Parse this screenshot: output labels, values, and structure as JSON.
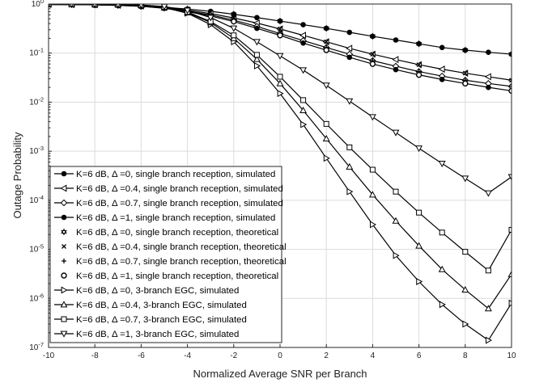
{
  "chart_data": {
    "type": "line",
    "title": "",
    "xlabel": "Normalized Average SNR per Branch",
    "ylabel": "Outage Probability",
    "xlim": [
      -10,
      10
    ],
    "ylim": [
      1e-07,
      1
    ],
    "yscale": "log",
    "grid": true,
    "legend_position": "bottom-left",
    "x_ticks": [
      "-10",
      "-8",
      "-6",
      "-4",
      "-2",
      "0",
      "2",
      "4",
      "6",
      "8",
      "10"
    ],
    "y_ticks": [
      {
        "base": "10",
        "exp": "0"
      },
      {
        "base": "10",
        "exp": "-1"
      },
      {
        "base": "10",
        "exp": "-2"
      },
      {
        "base": "10",
        "exp": "-3"
      },
      {
        "base": "10",
        "exp": "-4"
      },
      {
        "base": "10",
        "exp": "-5"
      },
      {
        "base": "10",
        "exp": "-6"
      },
      {
        "base": "10",
        "exp": "-7"
      }
    ],
    "x_marker_step": 1,
    "x_marker_step_theory": 2,
    "series": [
      {
        "name": "K=6 dB, Δ =0, single branch reception, simulated",
        "marker": "dot",
        "line": true,
        "points": [
          [
            -10,
            0.98
          ],
          [
            -9,
            0.975
          ],
          [
            -8,
            0.965
          ],
          [
            -7,
            0.95
          ],
          [
            -6,
            0.92
          ],
          [
            -5,
            0.86
          ],
          [
            -4,
            0.79
          ],
          [
            -3,
            0.71
          ],
          [
            -2,
            0.62
          ],
          [
            -1,
            0.53
          ],
          [
            0,
            0.45
          ],
          [
            1,
            0.38
          ],
          [
            2,
            0.32
          ],
          [
            3,
            0.265
          ],
          [
            4,
            0.22
          ],
          [
            5,
            0.185
          ],
          [
            6,
            0.155
          ],
          [
            7,
            0.13
          ],
          [
            8,
            0.115
          ],
          [
            9,
            0.104
          ],
          [
            10,
            0.095
          ]
        ]
      },
      {
        "name": "K=6 dB, Δ =0.4, single branch reception, simulated",
        "marker": "triangle-left",
        "line": true,
        "points": [
          [
            -10,
            0.98
          ],
          [
            -9,
            0.975
          ],
          [
            -8,
            0.965
          ],
          [
            -7,
            0.945
          ],
          [
            -6,
            0.91
          ],
          [
            -5,
            0.85
          ],
          [
            -4,
            0.75
          ],
          [
            -3,
            0.64
          ],
          [
            -2,
            0.52
          ],
          [
            -1,
            0.41
          ],
          [
            0,
            0.31
          ],
          [
            1,
            0.23
          ],
          [
            2,
            0.17
          ],
          [
            3,
            0.125
          ],
          [
            4,
            0.095
          ],
          [
            5,
            0.074
          ],
          [
            6,
            0.058
          ],
          [
            7,
            0.047
          ],
          [
            8,
            0.039
          ],
          [
            9,
            0.033
          ],
          [
            10,
            0.028
          ]
        ]
      },
      {
        "name": "K=6 dB, Δ =0.7, single branch reception, simulated",
        "marker": "diamond",
        "line": true,
        "points": [
          [
            -10,
            0.98
          ],
          [
            -9,
            0.975
          ],
          [
            -8,
            0.965
          ],
          [
            -7,
            0.94
          ],
          [
            -6,
            0.9
          ],
          [
            -5,
            0.83
          ],
          [
            -4,
            0.72
          ],
          [
            -3,
            0.6
          ],
          [
            -2,
            0.47
          ],
          [
            -1,
            0.35
          ],
          [
            0,
            0.25
          ],
          [
            1,
            0.18
          ],
          [
            2,
            0.13
          ],
          [
            3,
            0.095
          ],
          [
            4,
            0.07
          ],
          [
            5,
            0.054
          ],
          [
            6,
            0.042
          ],
          [
            7,
            0.034
          ],
          [
            8,
            0.028
          ],
          [
            9,
            0.024
          ],
          [
            10,
            0.021
          ]
        ]
      },
      {
        "name": "K=6 dB, Δ =1, single branch reception, simulated",
        "marker": "dot",
        "line": true,
        "points": [
          [
            -10,
            0.98
          ],
          [
            -9,
            0.975
          ],
          [
            -8,
            0.96
          ],
          [
            -7,
            0.94
          ],
          [
            -6,
            0.9
          ],
          [
            -5,
            0.82
          ],
          [
            -4,
            0.7
          ],
          [
            -3,
            0.57
          ],
          [
            -2,
            0.44
          ],
          [
            -1,
            0.32
          ],
          [
            0,
            0.23
          ],
          [
            1,
            0.16
          ],
          [
            2,
            0.115
          ],
          [
            3,
            0.082
          ],
          [
            4,
            0.06
          ],
          [
            5,
            0.046
          ],
          [
            6,
            0.036
          ],
          [
            7,
            0.029
          ],
          [
            8,
            0.024
          ],
          [
            9,
            0.02
          ],
          [
            10,
            0.017
          ]
        ]
      },
      {
        "name": "K=6 dB, Δ =0, single branch reception, theoretical",
        "marker": "hexagram",
        "line": false,
        "theory_of": 0
      },
      {
        "name": "K=6 dB, Δ =0.4, single branch reception, theoretical",
        "marker": "x",
        "line": false,
        "theory_of": 1
      },
      {
        "name": "K=6 dB, Δ =0.7, single branch reception, theoretical",
        "marker": "plus",
        "line": false,
        "theory_of": 2
      },
      {
        "name": "K=6 dB, Δ =1, single branch reception, theoretical",
        "marker": "circle",
        "line": false,
        "theory_of": 3
      },
      {
        "name": "K=6 dB, Δ =0, 3-branch EGC, simulated",
        "marker": "triangle-right",
        "line": true,
        "points": [
          [
            -10,
            1.0
          ],
          [
            -9,
            1.0
          ],
          [
            -8,
            0.99
          ],
          [
            -7,
            0.98
          ],
          [
            -6,
            0.95
          ],
          [
            -5,
            0.85
          ],
          [
            -4,
            0.65
          ],
          [
            -3,
            0.38
          ],
          [
            -2,
            0.17
          ],
          [
            -1,
            0.055
          ],
          [
            0,
            0.015
          ],
          [
            1,
            0.0035
          ],
          [
            2,
            0.00072
          ],
          [
            3,
            0.00015
          ],
          [
            4,
            3.2e-05
          ],
          [
            5,
            7.5e-06
          ],
          [
            6,
            2.2e-06
          ],
          [
            7,
            7.5e-07
          ],
          [
            8,
            3e-07
          ],
          [
            9,
            1.4e-07
          ],
          [
            10,
            8e-07
          ]
        ]
      },
      {
        "name": "K=6 dB, Δ =0.4, 3-branch EGC, simulated",
        "marker": "triangle-up",
        "line": true,
        "points": [
          [
            -10,
            1.0
          ],
          [
            -9,
            1.0
          ],
          [
            -8,
            0.99
          ],
          [
            -7,
            0.98
          ],
          [
            -6,
            0.95
          ],
          [
            -5,
            0.86
          ],
          [
            -4,
            0.67
          ],
          [
            -3,
            0.42
          ],
          [
            -2,
            0.2
          ],
          [
            -1,
            0.075
          ],
          [
            0,
            0.024
          ],
          [
            1,
            0.0068
          ],
          [
            2,
            0.0018
          ],
          [
            3,
            0.00048
          ],
          [
            4,
            0.00013
          ],
          [
            5,
            3.8e-05
          ],
          [
            6,
            1.18e-05
          ],
          [
            7,
            3.9e-06
          ],
          [
            8,
            1.5e-06
          ],
          [
            9,
            6.2e-07
          ],
          [
            10,
            3.1e-06
          ]
        ]
      },
      {
        "name": "K=6 dB, Δ =0.7, 3-branch EGC, simulated",
        "marker": "square",
        "line": true,
        "points": [
          [
            -10,
            1.0
          ],
          [
            -9,
            1.0
          ],
          [
            -8,
            0.99
          ],
          [
            -7,
            0.98
          ],
          [
            -6,
            0.955
          ],
          [
            -5,
            0.87
          ],
          [
            -4,
            0.69
          ],
          [
            -3,
            0.44
          ],
          [
            -2,
            0.23
          ],
          [
            -1,
            0.092
          ],
          [
            0,
            0.033
          ],
          [
            1,
            0.011
          ],
          [
            2,
            0.0036
          ],
          [
            3,
            0.0012
          ],
          [
            4,
            0.00042
          ],
          [
            5,
            0.00015
          ],
          [
            6,
            5.6e-05
          ],
          [
            7,
            2.2e-05
          ],
          [
            8,
            8.9e-06
          ],
          [
            9,
            3.7e-06
          ],
          [
            10,
            2.5e-05
          ]
        ]
      },
      {
        "name": "K=6 dB, Δ =1, 3-branch EGC, simulated",
        "marker": "triangle-down",
        "line": true,
        "points": [
          [
            -10,
            1.0
          ],
          [
            -9,
            1.0
          ],
          [
            -8,
            0.99
          ],
          [
            -7,
            0.98
          ],
          [
            -6,
            0.96
          ],
          [
            -5,
            0.89
          ],
          [
            -4,
            0.74
          ],
          [
            -3,
            0.53
          ],
          [
            -2,
            0.32
          ],
          [
            -1,
            0.17
          ],
          [
            0,
            0.088
          ],
          [
            1,
            0.045
          ],
          [
            2,
            0.022
          ],
          [
            3,
            0.0105
          ],
          [
            4,
            0.005
          ],
          [
            5,
            0.0024
          ],
          [
            6,
            0.00115
          ],
          [
            7,
            0.00056
          ],
          [
            8,
            0.00028
          ],
          [
            9,
            0.00014
          ],
          [
            10,
            0.0003
          ]
        ]
      }
    ]
  }
}
